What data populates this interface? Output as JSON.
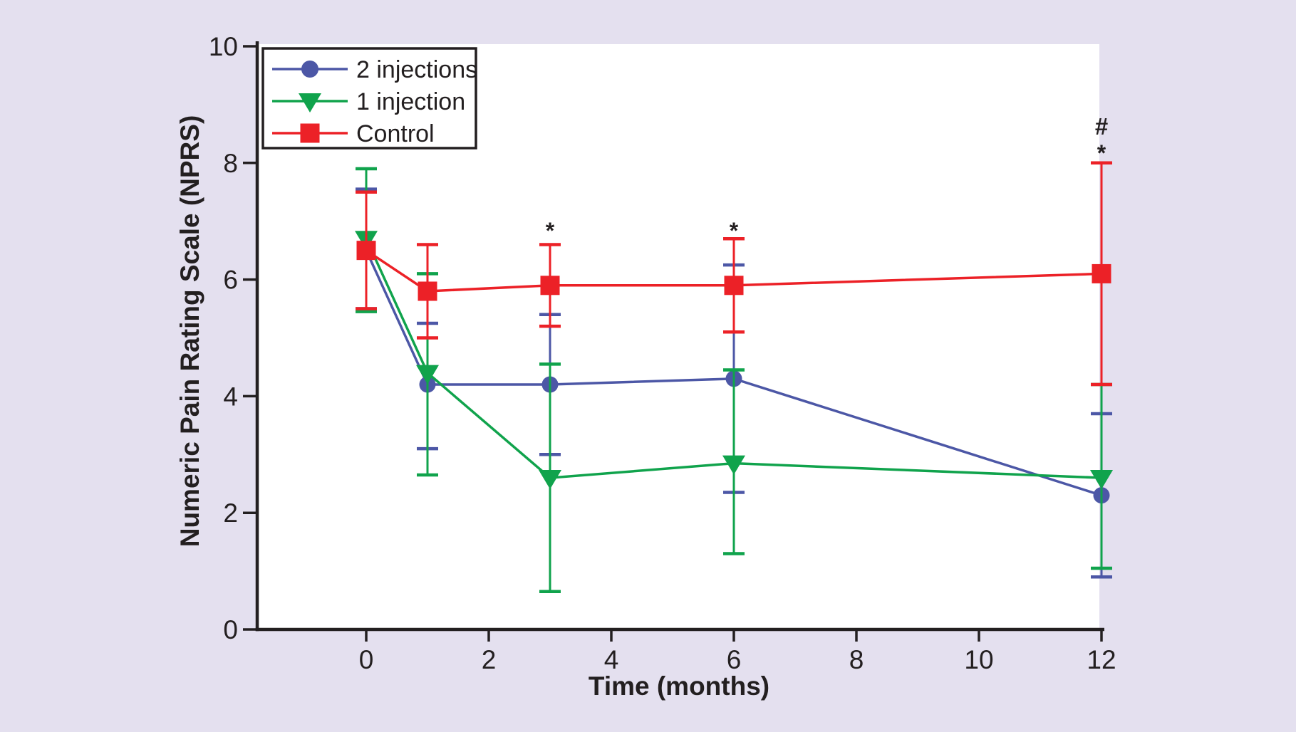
{
  "figure": {
    "background_color": "#E4E0EF",
    "plot_background_color": "#FFFFFF",
    "axis_color": "#231F20"
  },
  "chart_data": {
    "type": "line",
    "title": "",
    "xlabel": "Time (months)",
    "ylabel": "Numeric Pain Rating Scale (NPRS)",
    "xlim": [
      -1.8,
      12.1
    ],
    "ylim": [
      0,
      10
    ],
    "x_ticks": [
      0,
      2,
      4,
      6,
      8,
      10,
      12
    ],
    "y_ticks": [
      0,
      2,
      4,
      6,
      8,
      10
    ],
    "grid": false,
    "legend_position": "top-left",
    "x": [
      0,
      1,
      3,
      6,
      12
    ],
    "series": [
      {
        "name": "2 injections",
        "marker": "circle",
        "color": "#4C57A6",
        "values": [
          6.5,
          4.2,
          4.2,
          4.3,
          2.3
        ],
        "err_upper": [
          7.55,
          5.25,
          5.4,
          6.25,
          3.7
        ],
        "err_lower": [
          5.5,
          3.1,
          3.0,
          2.35,
          0.9
        ]
      },
      {
        "name": "1 injection",
        "marker": "triangle-down",
        "color": "#10A34C",
        "values": [
          6.7,
          4.4,
          2.6,
          2.85,
          2.6
        ],
        "err_upper": [
          7.9,
          6.1,
          4.55,
          4.45,
          4.2
        ],
        "err_lower": [
          5.45,
          2.65,
          0.65,
          1.3,
          1.05
        ]
      },
      {
        "name": "Control",
        "marker": "square",
        "color": "#EC2127",
        "values": [
          6.5,
          5.8,
          5.9,
          5.9,
          6.1
        ],
        "err_upper": [
          7.5,
          6.6,
          6.6,
          6.7,
          8.0
        ],
        "err_lower": [
          5.5,
          5.0,
          5.2,
          5.1,
          4.2
        ]
      }
    ],
    "annotations": [
      {
        "text": "*",
        "x": 3,
        "y": 6.9
      },
      {
        "text": "*",
        "x": 6,
        "y": 6.9
      },
      {
        "text": "#",
        "x": 12,
        "y": 8.63
      },
      {
        "text": "*",
        "x": 12,
        "y": 8.23
      }
    ]
  }
}
